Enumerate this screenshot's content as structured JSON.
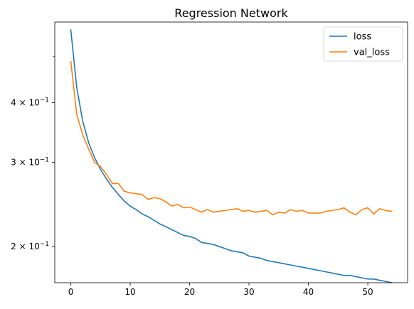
{
  "chart_data": {
    "type": "line",
    "title": "Regression Network",
    "xlabel": "",
    "ylabel": "",
    "yscale": "log",
    "xlim": [
      -2.7,
      56.7
    ],
    "ylim": [
      0.168,
      0.59
    ],
    "x_ticks": [
      0,
      10,
      20,
      30,
      40,
      50
    ],
    "x_tick_labels": [
      "0",
      "10",
      "20",
      "30",
      "40",
      "50"
    ],
    "y_ticks": [
      0.2,
      0.3,
      0.4
    ],
    "y_tick_labels": [
      {
        "base": "2",
        "mult": " × 10",
        "exp": "−1"
      },
      {
        "base": "3",
        "mult": " × 10",
        "exp": "−1"
      },
      {
        "base": "4",
        "mult": " × 10",
        "exp": "−1"
      }
    ],
    "y_minor_ticks": [
      0.5
    ],
    "grid": false,
    "legend_position": "top-right",
    "x": [
      0,
      1,
      2,
      3,
      4,
      5,
      6,
      7,
      8,
      9,
      10,
      11,
      12,
      13,
      14,
      15,
      16,
      17,
      18,
      19,
      20,
      21,
      22,
      23,
      24,
      25,
      26,
      27,
      28,
      29,
      30,
      31,
      32,
      33,
      34,
      35,
      36,
      37,
      38,
      39,
      40,
      41,
      42,
      43,
      44,
      45,
      46,
      47,
      48,
      49,
      50,
      51,
      52,
      53,
      54
    ],
    "series": [
      {
        "name": "loss",
        "color": "#1f77b4",
        "values": [
          0.568,
          0.43,
          0.366,
          0.33,
          0.307,
          0.29,
          0.277,
          0.266,
          0.257,
          0.249,
          0.243,
          0.239,
          0.234,
          0.231,
          0.227,
          0.223,
          0.22,
          0.217,
          0.214,
          0.211,
          0.21,
          0.208,
          0.204,
          0.203,
          0.202,
          0.2,
          0.198,
          0.196,
          0.195,
          0.194,
          0.191,
          0.19,
          0.189,
          0.187,
          0.186,
          0.185,
          0.184,
          0.183,
          0.182,
          0.181,
          0.18,
          0.179,
          0.178,
          0.177,
          0.176,
          0.175,
          0.174,
          0.174,
          0.173,
          0.172,
          0.171,
          0.171,
          0.17,
          0.169,
          0.168
        ]
      },
      {
        "name": "val_loss",
        "color": "#ff7f0e",
        "values": [
          0.488,
          0.378,
          0.343,
          0.32,
          0.3,
          0.294,
          0.283,
          0.271,
          0.271,
          0.261,
          0.259,
          0.258,
          0.257,
          0.251,
          0.253,
          0.252,
          0.248,
          0.243,
          0.245,
          0.241,
          0.242,
          0.239,
          0.236,
          0.239,
          0.236,
          0.237,
          0.238,
          0.239,
          0.24,
          0.237,
          0.238,
          0.236,
          0.237,
          0.238,
          0.233,
          0.236,
          0.235,
          0.239,
          0.237,
          0.238,
          0.235,
          0.235,
          0.235,
          0.237,
          0.238,
          0.239,
          0.241,
          0.236,
          0.233,
          0.239,
          0.241,
          0.234,
          0.24,
          0.238,
          0.237
        ]
      }
    ]
  }
}
